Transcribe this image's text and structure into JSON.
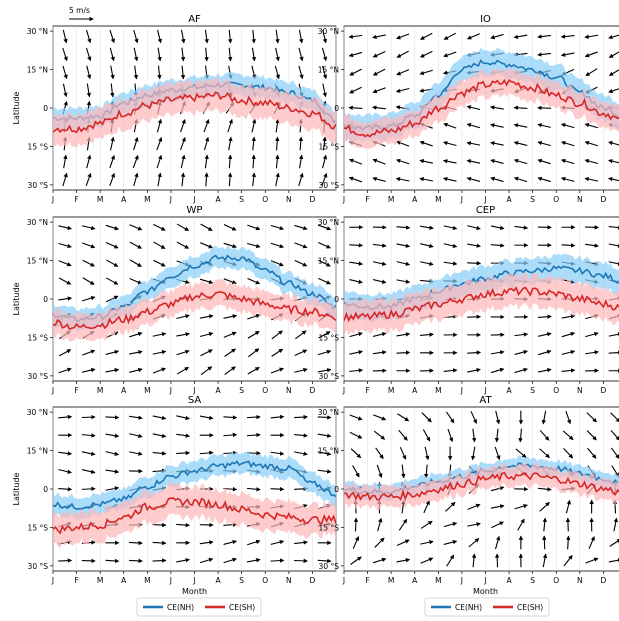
{
  "figure": {
    "ylabel": "Latitude",
    "xlabel": "Month",
    "scale_label": "5 m/s",
    "month_ticks": [
      "J",
      "F",
      "M",
      "A",
      "M",
      "J",
      "J",
      "A",
      "S",
      "O",
      "N",
      "D"
    ],
    "lat_ticks": [
      30,
      15,
      0,
      -15,
      -30
    ],
    "lat_tick_labels": [
      "30 °N",
      "15 °N",
      "0",
      "15 °S",
      "30 °S"
    ],
    "legend": [
      "CE(NH)",
      "CE(SH)"
    ]
  },
  "colors": {
    "nh_line": "#1f77b4",
    "nh_band": "#87cefa",
    "sh_line": "#d62728",
    "sh_band": "#ffb6b9",
    "arrow": "#000000"
  },
  "chart_data": [
    {
      "type": "line",
      "title": "AF",
      "xlabel": "",
      "ylabel": "Latitude",
      "x": [
        0,
        1,
        2,
        3,
        4,
        5,
        6,
        7,
        8,
        9,
        10,
        11,
        12
      ],
      "ylim": [
        -32,
        32
      ],
      "series": [
        {
          "name": "CE(NH)",
          "values": [
            -4,
            -4,
            -3,
            2,
            5,
            7,
            8,
            9,
            9,
            8,
            6,
            3,
            -5
          ],
          "band": 4
        },
        {
          "name": "CE(SH)",
          "values": [
            -8,
            -8,
            -6,
            -2,
            1,
            3,
            4,
            5,
            3,
            2,
            0,
            -2,
            -7
          ],
          "band": 6
        }
      ],
      "wind": {
        "u0": 0.5,
        "v0": 2.5,
        "u_amp": 0.3,
        "v_amp": 0.4
      }
    },
    {
      "type": "line",
      "title": "IO",
      "xlabel": "",
      "ylabel": "",
      "x": [
        0,
        1,
        2,
        3,
        4,
        5,
        6,
        7,
        8,
        9,
        10,
        11,
        12
      ],
      "ylim": [
        -32,
        32
      ],
      "series": [
        {
          "name": "CE(NH)",
          "values": [
            -7,
            -8,
            -7,
            -3,
            5,
            15,
            18,
            17,
            15,
            12,
            6,
            0,
            -4
          ],
          "band": 5
        },
        {
          "name": "CE(SH)",
          "values": [
            -8,
            -10,
            -9,
            -6,
            0,
            6,
            9,
            10,
            8,
            5,
            2,
            -2,
            -6
          ],
          "band": 5
        }
      ],
      "wind": {
        "u0": -2.2,
        "v0": 0.6,
        "u_amp": 0.8,
        "v_amp": 0.3
      }
    },
    {
      "type": "line",
      "title": "WP",
      "xlabel": "",
      "ylabel": "Latitude",
      "x": [
        0,
        1,
        2,
        3,
        4,
        5,
        6,
        7,
        8,
        9,
        10,
        11,
        12
      ],
      "ylim": [
        -32,
        32
      ],
      "series": [
        {
          "name": "CE(NH)",
          "values": [
            -6,
            -8,
            -7,
            -3,
            3,
            9,
            13,
            16,
            16,
            11,
            6,
            2,
            -3
          ],
          "band": 4
        },
        {
          "name": "CE(SH)",
          "values": [
            -9,
            -11,
            -10,
            -8,
            -5,
            -2,
            1,
            2,
            0,
            -2,
            -4,
            -5,
            -7
          ],
          "band": 5
        }
      ],
      "wind": {
        "u0": 2.2,
        "v0": 0.9,
        "u_amp": 0.5,
        "v_amp": 0.4
      }
    },
    {
      "type": "line",
      "title": "CEP",
      "xlabel": "",
      "ylabel": "",
      "x": [
        0,
        1,
        2,
        3,
        4,
        5,
        6,
        7,
        8,
        9,
        10,
        11,
        12
      ],
      "ylim": [
        -32,
        32
      ],
      "series": [
        {
          "name": "CE(NH)",
          "values": [
            -2,
            -3,
            -3,
            0,
            3,
            6,
            8,
            10,
            11,
            12,
            11,
            9,
            6
          ],
          "band": 5
        },
        {
          "name": "CE(SH)",
          "values": [
            -7,
            -7,
            -6,
            -4,
            -2,
            0,
            2,
            3,
            3,
            2,
            0,
            -2,
            -4
          ],
          "band": 6
        }
      ],
      "wind": {
        "u0": 2.4,
        "v0": 0.3,
        "u_amp": 0.4,
        "v_amp": 0.3
      }
    },
    {
      "type": "line",
      "title": "SA",
      "xlabel": "Month",
      "ylabel": "Latitude",
      "x": [
        0,
        1,
        2,
        3,
        4,
        5,
        6,
        7,
        8,
        9,
        10,
        11,
        12
      ],
      "ylim": [
        -32,
        32
      ],
      "series": [
        {
          "name": "CE(NH)",
          "values": [
            -6,
            -7,
            -6,
            -4,
            1,
            5,
            7,
            9,
            10,
            9,
            8,
            2,
            -2
          ],
          "band": 4
        },
        {
          "name": "CE(SH)",
          "values": [
            -16,
            -15,
            -14,
            -11,
            -7,
            -5,
            -5,
            -6,
            -8,
            -10,
            -11,
            -12,
            -12
          ],
          "band": 6
        }
      ],
      "wind": {
        "u0": 2.4,
        "v0": 0.2,
        "u_amp": 0.5,
        "v_amp": 0.4
      }
    },
    {
      "type": "line",
      "title": "AT",
      "xlabel": "Month",
      "ylabel": "",
      "x": [
        0,
        1,
        2,
        3,
        4,
        5,
        6,
        7,
        8,
        9,
        10,
        11,
        12
      ],
      "ylim": [
        -32,
        32
      ],
      "series": [
        {
          "name": "CE(NH)",
          "values": [
            0,
            -1,
            -1,
            1,
            3,
            5,
            7,
            9,
            9,
            8,
            6,
            4,
            1
          ],
          "band": 3
        },
        {
          "name": "CE(SH)",
          "values": [
            -2,
            -3,
            -3,
            -2,
            0,
            2,
            4,
            5,
            5,
            4,
            2,
            0,
            -2
          ],
          "band": 4
        }
      ],
      "wind": {
        "u0": 0.8,
        "v0": 1.2,
        "u_amp": 0.9,
        "v_amp": 0.9
      }
    }
  ]
}
